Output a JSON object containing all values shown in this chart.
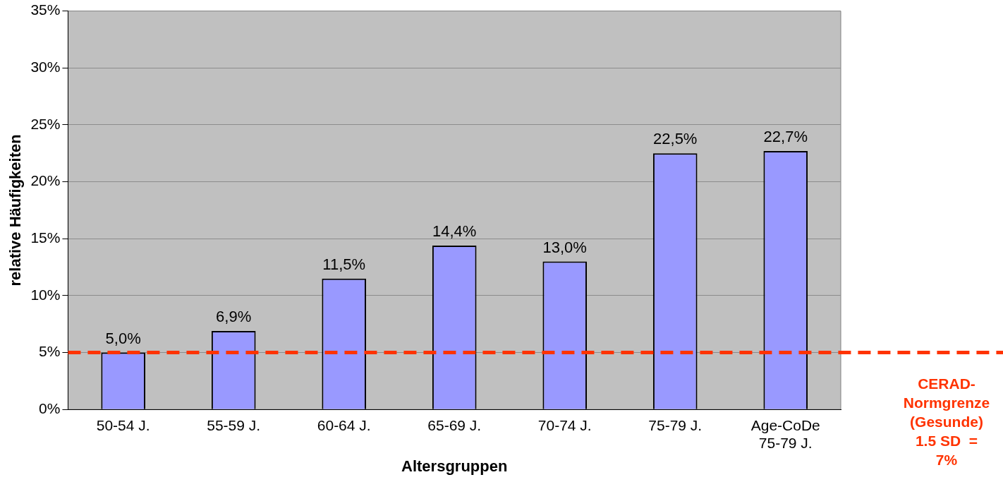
{
  "chart_data": {
    "type": "bar",
    "xlabel": "Altersgruppen",
    "ylabel": "relative Häufigkeiten",
    "categories": [
      "50-54 J.",
      "55-59 J.",
      "60-64 J.",
      "65-69 J.",
      "70-74 J.",
      "75-79 J.",
      "Age-CoDe\n75-79 J."
    ],
    "values": [
      5.0,
      6.9,
      11.5,
      14.4,
      13.0,
      22.5,
      22.7
    ],
    "color": "#9999ff",
    "value_labels": [
      "5,0%",
      "6,9%",
      "11,5%",
      "14,4%",
      "13,0%",
      "22,5%",
      "22,7%"
    ],
    "ylim": [
      0,
      35
    ],
    "yticks": [
      {
        "value": 0,
        "label": "0%"
      },
      {
        "value": 5,
        "label": "5%"
      },
      {
        "value": 10,
        "label": "10%"
      },
      {
        "value": 15,
        "label": "15%"
      },
      {
        "value": 20,
        "label": "20%"
      },
      {
        "value": 25,
        "label": "25%"
      },
      {
        "value": 30,
        "label": "30%"
      },
      {
        "value": 35,
        "label": "35%"
      }
    ],
    "grid": "y",
    "legend": false,
    "annotations": [
      "CERAD-\nNormgrenze\n(Gesunde)\n1.5 SD  =\n7%"
    ],
    "ref_lines": [
      {
        "axis": "y",
        "value": 5,
        "color": "#ff3300",
        "line_style": "dashed"
      }
    ]
  }
}
